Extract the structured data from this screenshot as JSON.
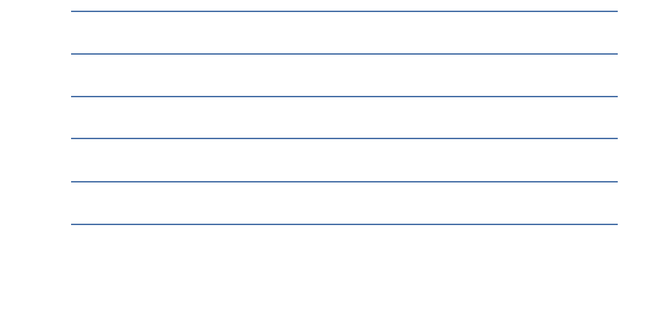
{
  "document": {
    "rule_color": "#4a72a8",
    "background_color": "#ffffff",
    "lines": [
      {
        "text": ""
      },
      {
        "text": ""
      },
      {
        "text": ""
      },
      {
        "text": ""
      },
      {
        "text": ""
      },
      {
        "text": ""
      }
    ]
  }
}
